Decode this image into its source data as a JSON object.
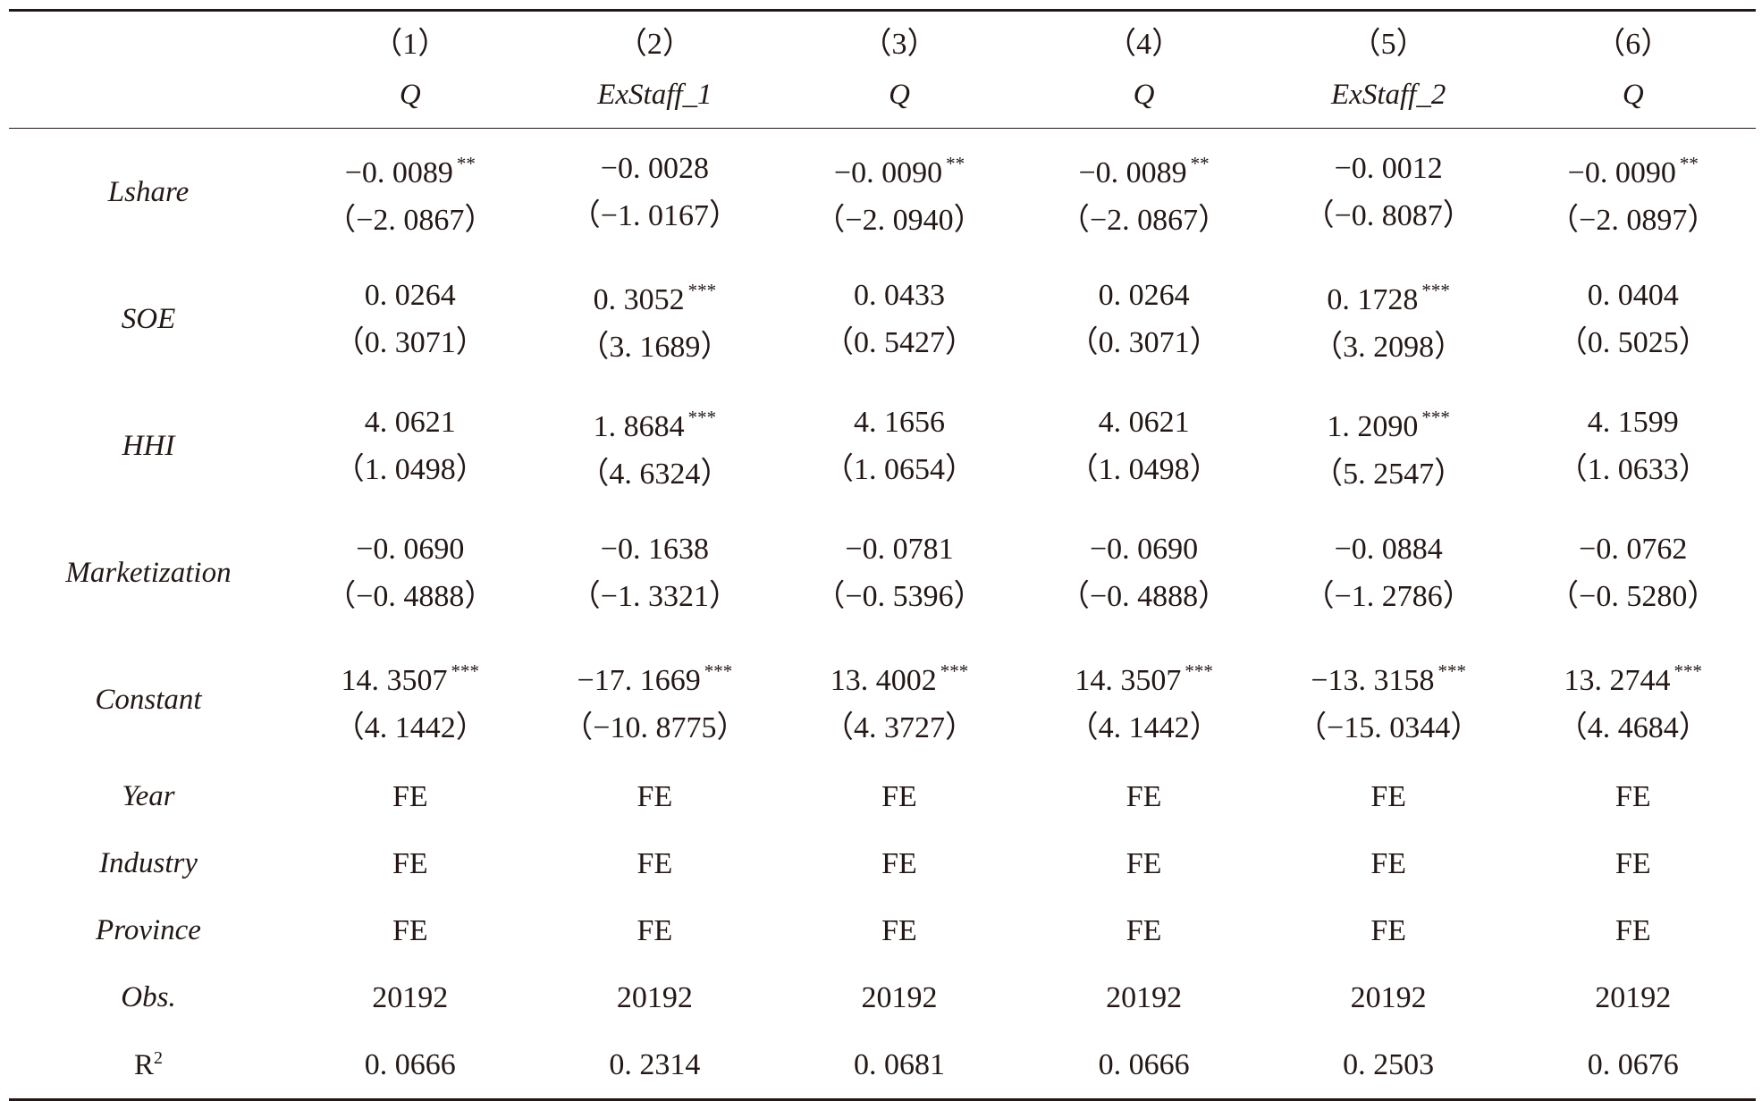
{
  "columns": [
    {
      "number": "（1）",
      "dependent": "Q"
    },
    {
      "number": "（2）",
      "dependent": "ExStaff_1"
    },
    {
      "number": "（3）",
      "dependent": "Q"
    },
    {
      "number": "（4）",
      "dependent": "Q"
    },
    {
      "number": "（5）",
      "dependent": "ExStaff_2"
    },
    {
      "number": "（6）",
      "dependent": "Q"
    }
  ],
  "coef_rows": [
    {
      "label": "Lshare",
      "cells": [
        {
          "coef": "−0. 0089",
          "stars": "**",
          "t": "（−2. 0867）"
        },
        {
          "coef": "−0. 0028",
          "stars": "",
          "t": "（−1. 0167）"
        },
        {
          "coef": "−0. 0090",
          "stars": "**",
          "t": "（−2. 0940）"
        },
        {
          "coef": "−0. 0089",
          "stars": "**",
          "t": "（−2. 0867）"
        },
        {
          "coef": "−0. 0012",
          "stars": "",
          "t": "（−0. 8087）"
        },
        {
          "coef": "−0. 0090",
          "stars": "**",
          "t": "（−2. 0897）"
        }
      ]
    },
    {
      "label": "SOE",
      "cells": [
        {
          "coef": "0. 0264",
          "stars": "",
          "t": "（0. 3071）"
        },
        {
          "coef": "0. 3052",
          "stars": "***",
          "t": "（3. 1689）"
        },
        {
          "coef": "0. 0433",
          "stars": "",
          "t": "（0. 5427）"
        },
        {
          "coef": "0. 0264",
          "stars": "",
          "t": "（0. 3071）"
        },
        {
          "coef": "0. 1728",
          "stars": "***",
          "t": "（3. 2098）"
        },
        {
          "coef": "0. 0404",
          "stars": "",
          "t": "（0. 5025）"
        }
      ]
    },
    {
      "label": "HHI",
      "cells": [
        {
          "coef": "4. 0621",
          "stars": "",
          "t": "（1. 0498）"
        },
        {
          "coef": "1. 8684",
          "stars": "***",
          "t": "（4. 6324）"
        },
        {
          "coef": "4. 1656",
          "stars": "",
          "t": "（1. 0654）"
        },
        {
          "coef": "4. 0621",
          "stars": "",
          "t": "（1. 0498）"
        },
        {
          "coef": "1. 2090",
          "stars": "***",
          "t": "（5. 2547）"
        },
        {
          "coef": "4. 1599",
          "stars": "",
          "t": "（1. 0633）"
        }
      ]
    },
    {
      "label": "Marketization",
      "cells": [
        {
          "coef": "−0. 0690",
          "stars": "",
          "t": "（−0. 4888）"
        },
        {
          "coef": "−0. 1638",
          "stars": "",
          "t": "（−1. 3321）"
        },
        {
          "coef": "−0. 0781",
          "stars": "",
          "t": "（−0. 5396）"
        },
        {
          "coef": "−0. 0690",
          "stars": "",
          "t": "（−0. 4888）"
        },
        {
          "coef": "−0. 0884",
          "stars": "",
          "t": "（−1. 2786）"
        },
        {
          "coef": "−0. 0762",
          "stars": "",
          "t": "（−0. 5280）"
        }
      ]
    },
    {
      "label": "Constant",
      "cells": [
        {
          "coef": "14. 3507",
          "stars": "***",
          "t": "（4. 1442）"
        },
        {
          "coef": "−17. 1669",
          "stars": "***",
          "t": "（−10. 8775）"
        },
        {
          "coef": "13. 4002",
          "stars": "***",
          "t": "（4. 3727）"
        },
        {
          "coef": "14. 3507",
          "stars": "***",
          "t": "（4. 1442）"
        },
        {
          "coef": "−13. 3158",
          "stars": "***",
          "t": "（−15. 0344）"
        },
        {
          "coef": "13. 2744",
          "stars": "***",
          "t": "（4. 4684）"
        }
      ]
    }
  ],
  "fe_rows": [
    {
      "label": "Year",
      "italic": true,
      "values": [
        "FE",
        "FE",
        "FE",
        "FE",
        "FE",
        "FE"
      ]
    },
    {
      "label": "Industry",
      "italic": true,
      "values": [
        "FE",
        "FE",
        "FE",
        "FE",
        "FE",
        "FE"
      ]
    },
    {
      "label": "Province",
      "italic": true,
      "values": [
        "FE",
        "FE",
        "FE",
        "FE",
        "FE",
        "FE"
      ]
    },
    {
      "label": "Obs.",
      "italic": true,
      "values": [
        "20192",
        "20192",
        "20192",
        "20192",
        "20192",
        "20192"
      ]
    }
  ],
  "r2_row": {
    "label": "R",
    "label_sup": "2",
    "values": [
      "0. 0666",
      "0. 2314",
      "0. 0681",
      "0. 0666",
      "0. 2503",
      "0. 0676"
    ]
  }
}
